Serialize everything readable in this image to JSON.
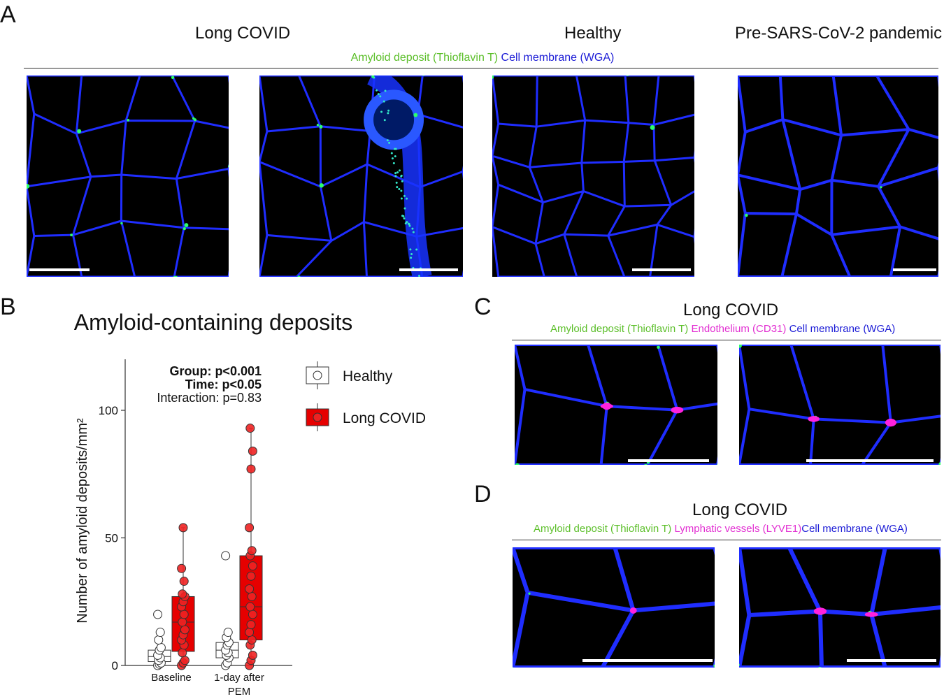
{
  "panels": {
    "A": {
      "label": "A",
      "titles": [
        "Long COVID",
        "Healthy",
        "Pre-SARS-CoV-2 pandemic"
      ],
      "legend": [
        {
          "text": "Amyloid deposit (Thioflavin T)",
          "color": "#5cbf2a"
        },
        {
          "text": "Cell membrane (WGA)",
          "color": "#1c1cd6"
        }
      ]
    },
    "B": {
      "label": "B",
      "title": "Amyloid-containing deposits",
      "stats": {
        "group": "Group: p<0.001",
        "time": "Time: p<0.05",
        "interaction": "Interaction: p=0.83"
      },
      "legend": {
        "healthy": "Healthy",
        "long_covid": "Long COVID"
      }
    },
    "C": {
      "label": "C",
      "title": "Long COVID",
      "legend": [
        {
          "text": "Amyloid deposit (Thioflavin T)",
          "color": "#5cbf2a"
        },
        {
          "text": "Endothelium (CD31)",
          "color": "#e22fd2"
        },
        {
          "text": "Cell membrane (WGA)",
          "color": "#1c1cd6"
        }
      ]
    },
    "D": {
      "label": "D",
      "title": "Long COVID",
      "legend": [
        {
          "text": "Amyloid deposit (Thioflavin T)",
          "color": "#5cbf2a"
        },
        {
          "text": "Lymphatic vessels (LYVE1)",
          "color": "#e22fd2"
        },
        {
          "text": "Cell membrane (WGA)",
          "color": "#1c1cd6"
        }
      ]
    }
  },
  "chart_data": {
    "type": "box",
    "title": "Amyloid-containing deposits",
    "ylabel": "Number of amyloid deposits/mm²",
    "xlabel": "",
    "categories": [
      "Baseline",
      "1-day after PEM"
    ],
    "category_lines": [
      [
        "Baseline"
      ],
      [
        "1-day after",
        "PEM"
      ]
    ],
    "ylim": [
      0,
      120
    ],
    "yticks": [
      0,
      50,
      100
    ],
    "grid": false,
    "legend_position": "right",
    "series": [
      {
        "name": "Healthy",
        "color": "#ffffff",
        "boxes": [
          {
            "q1": 1.5,
            "median": 3.5,
            "q3": 6,
            "whisker_low": 0,
            "whisker_high": 13
          },
          {
            "q1": 3,
            "median": 6,
            "q3": 9,
            "whisker_low": 0,
            "whisker_high": 13
          }
        ],
        "points": [
          [
            0,
            0.5,
            1,
            2,
            3,
            4,
            6,
            7,
            10,
            13,
            20
          ],
          [
            0,
            1,
            3,
            4,
            5,
            6,
            8,
            9,
            11,
            13,
            43
          ]
        ]
      },
      {
        "name": "Long COVID",
        "color": "#e60000",
        "boxes": [
          {
            "q1": 5.5,
            "median": 17,
            "q3": 27,
            "whisker_low": 0,
            "whisker_high": 54
          },
          {
            "q1": 10,
            "median": 23,
            "q3": 43,
            "whisker_low": 0,
            "whisker_high": 93
          }
        ],
        "points": [
          [
            0,
            1,
            2,
            5,
            8,
            10,
            12,
            14,
            17,
            20,
            23,
            25,
            27,
            28,
            33,
            38,
            54
          ],
          [
            0,
            2,
            4,
            8,
            10,
            13,
            16,
            20,
            23,
            27,
            30,
            35,
            39,
            43,
            45,
            54,
            77,
            84,
            93
          ]
        ]
      }
    ]
  }
}
